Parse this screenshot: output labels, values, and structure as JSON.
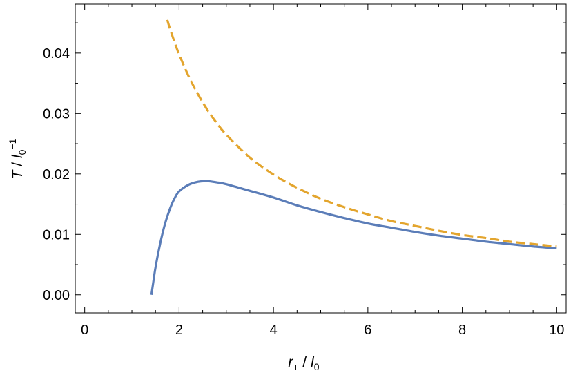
{
  "chart_data": {
    "type": "line",
    "xlabel": "r+ / l0",
    "ylabel": "T / l0^-1",
    "xlim": [
      -0.2,
      10.2
    ],
    "ylim": [
      -0.003,
      0.0481
    ],
    "x_major_ticks": [
      0,
      2,
      4,
      6,
      8,
      10
    ],
    "x_tick_labels": [
      "0",
      "2",
      "4",
      "6",
      "8",
      "10"
    ],
    "y_major_ticks": [
      0.0,
      0.01,
      0.02,
      0.03,
      0.04
    ],
    "y_tick_labels": [
      "0.00",
      "0.01",
      "0.02",
      "0.03",
      "0.04"
    ],
    "grid": false,
    "series": [
      {
        "color": "#5b7db8",
        "style": "solid",
        "x": [
          1.414,
          1.45,
          1.5,
          1.6,
          1.7,
          1.8,
          1.9,
          2.0,
          2.2,
          2.4,
          2.6,
          2.8,
          3.0,
          3.5,
          4.0,
          4.5,
          5.0,
          5.5,
          6.0,
          6.5,
          7.0,
          7.5,
          8.0,
          8.5,
          9.0,
          9.5,
          10.0
        ],
        "y": [
          0.0,
          0.0019,
          0.0045,
          0.0085,
          0.0117,
          0.0141,
          0.0159,
          0.0171,
          0.0182,
          0.0187,
          0.0188,
          0.0186,
          0.0183,
          0.0172,
          0.0161,
          0.0148,
          0.0137,
          0.0127,
          0.0118,
          0.0111,
          0.0104,
          0.0098,
          0.0093,
          0.0088,
          0.0084,
          0.008,
          0.0077
        ]
      },
      {
        "color": "#e3a52e",
        "style": "dashed",
        "x": [
          1.75,
          1.8,
          1.9,
          2.0,
          2.2,
          2.4,
          2.6,
          2.8,
          3.0,
          3.5,
          4.0,
          4.5,
          5.0,
          5.5,
          6.0,
          6.5,
          7.0,
          7.5,
          8.0,
          8.5,
          9.0,
          9.5,
          10.0
        ],
        "y": [
          0.0455,
          0.0442,
          0.0419,
          0.0398,
          0.0362,
          0.0332,
          0.0306,
          0.0284,
          0.0265,
          0.0227,
          0.0199,
          0.0177,
          0.0159,
          0.0145,
          0.0133,
          0.0122,
          0.0114,
          0.0106,
          0.0099,
          0.0094,
          0.0088,
          0.0084,
          0.008
        ]
      }
    ]
  }
}
